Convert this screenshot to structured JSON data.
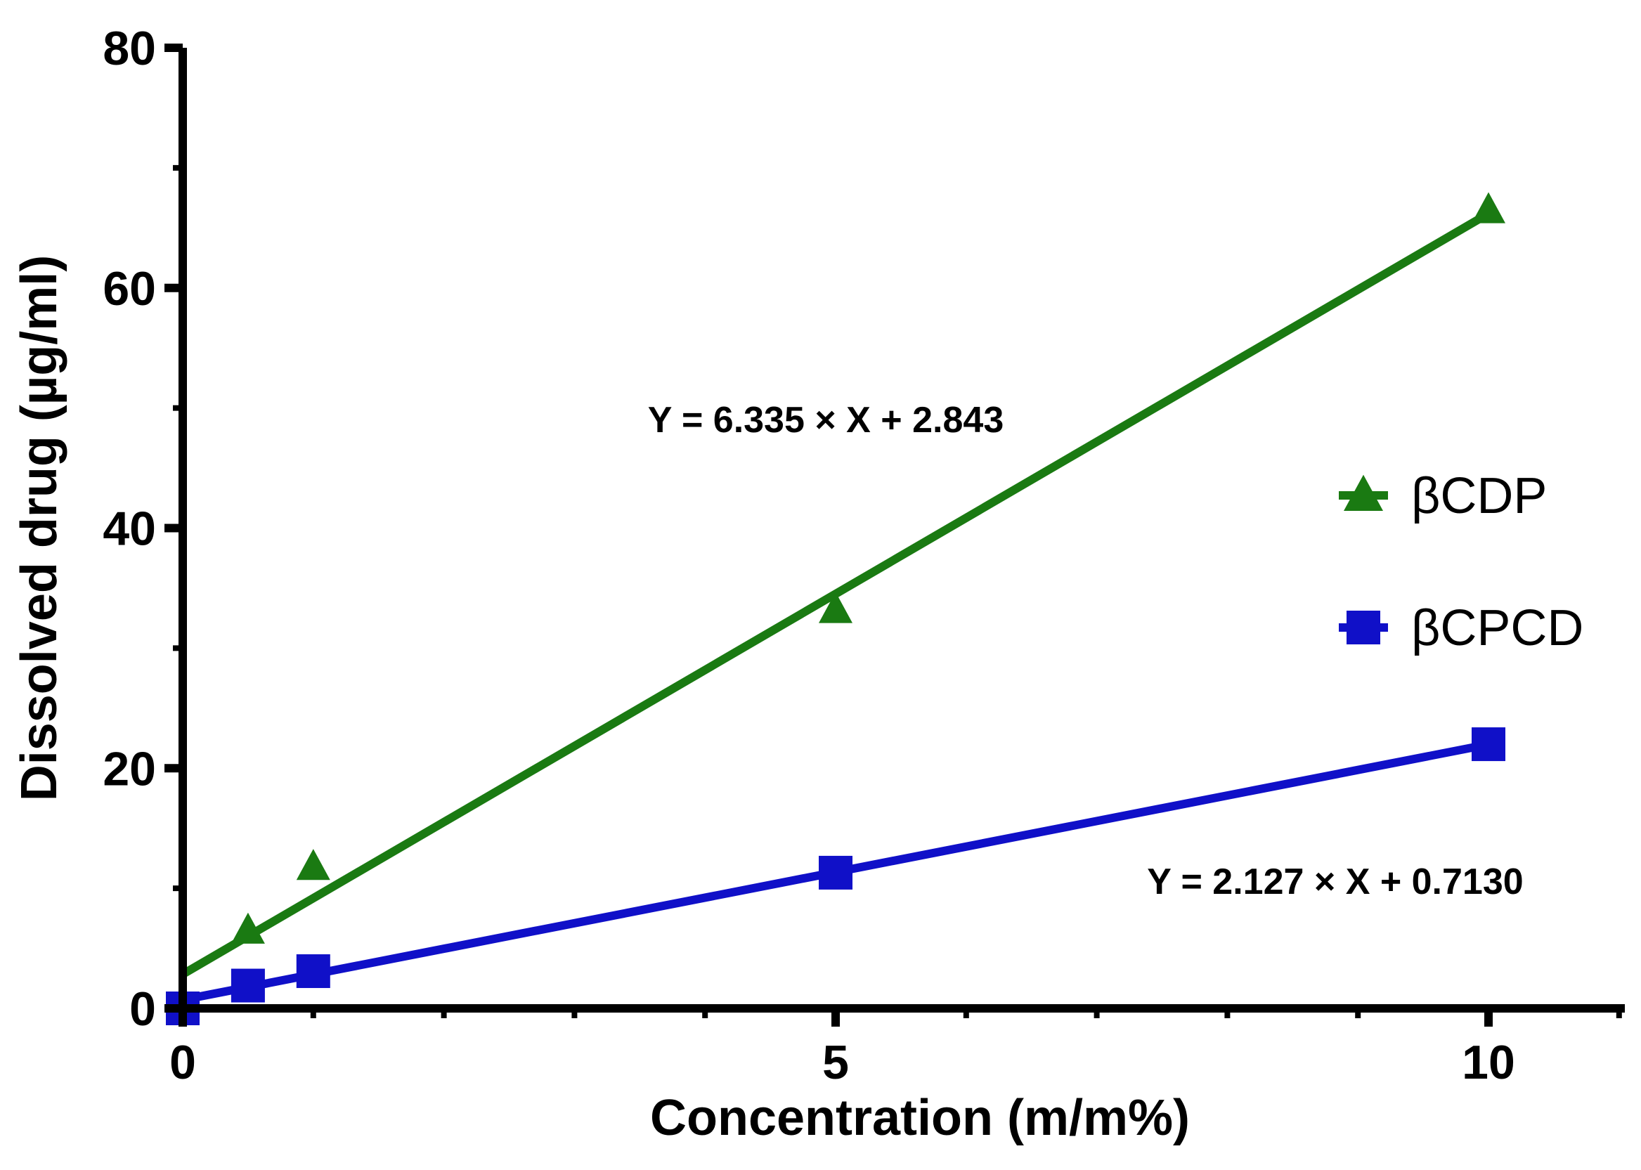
{
  "chart_data": {
    "type": "scatter",
    "xlabel": "Concentration (m/m%)",
    "ylabel": "Dissolved drug (µg/ml)",
    "xlim": [
      0,
      11
    ],
    "ylim": [
      0,
      80
    ],
    "x_ticks": [
      0,
      5,
      10
    ],
    "y_ticks": [
      0,
      20,
      40,
      60,
      80
    ],
    "x_tick_labels": [
      "0",
      "5",
      "10"
    ],
    "y_tick_labels": [
      "0",
      "20",
      "40",
      "60",
      "80"
    ],
    "grid": false,
    "legend_position": "right",
    "series": [
      {
        "name": "βCDP",
        "marker": "triangle",
        "color": "#1a7a12",
        "x": [
          0,
          0.5,
          1,
          5,
          10
        ],
        "y": [
          0,
          6.5,
          11.8,
          33.2,
          66.5
        ],
        "fit": {
          "slope": 6.335,
          "intercept": 2.843,
          "equation": "Y = 6.335 × X + 2.843"
        }
      },
      {
        "name": "βCPCD",
        "marker": "square",
        "color": "#1010c8",
        "x": [
          0,
          0.5,
          1,
          5,
          10
        ],
        "y": [
          0,
          1.9,
          3.1,
          11.3,
          22.0
        ],
        "fit": {
          "slope": 2.127,
          "intercept": 0.713,
          "equation": "Y = 2.127 × X + 0.7130"
        }
      }
    ]
  }
}
